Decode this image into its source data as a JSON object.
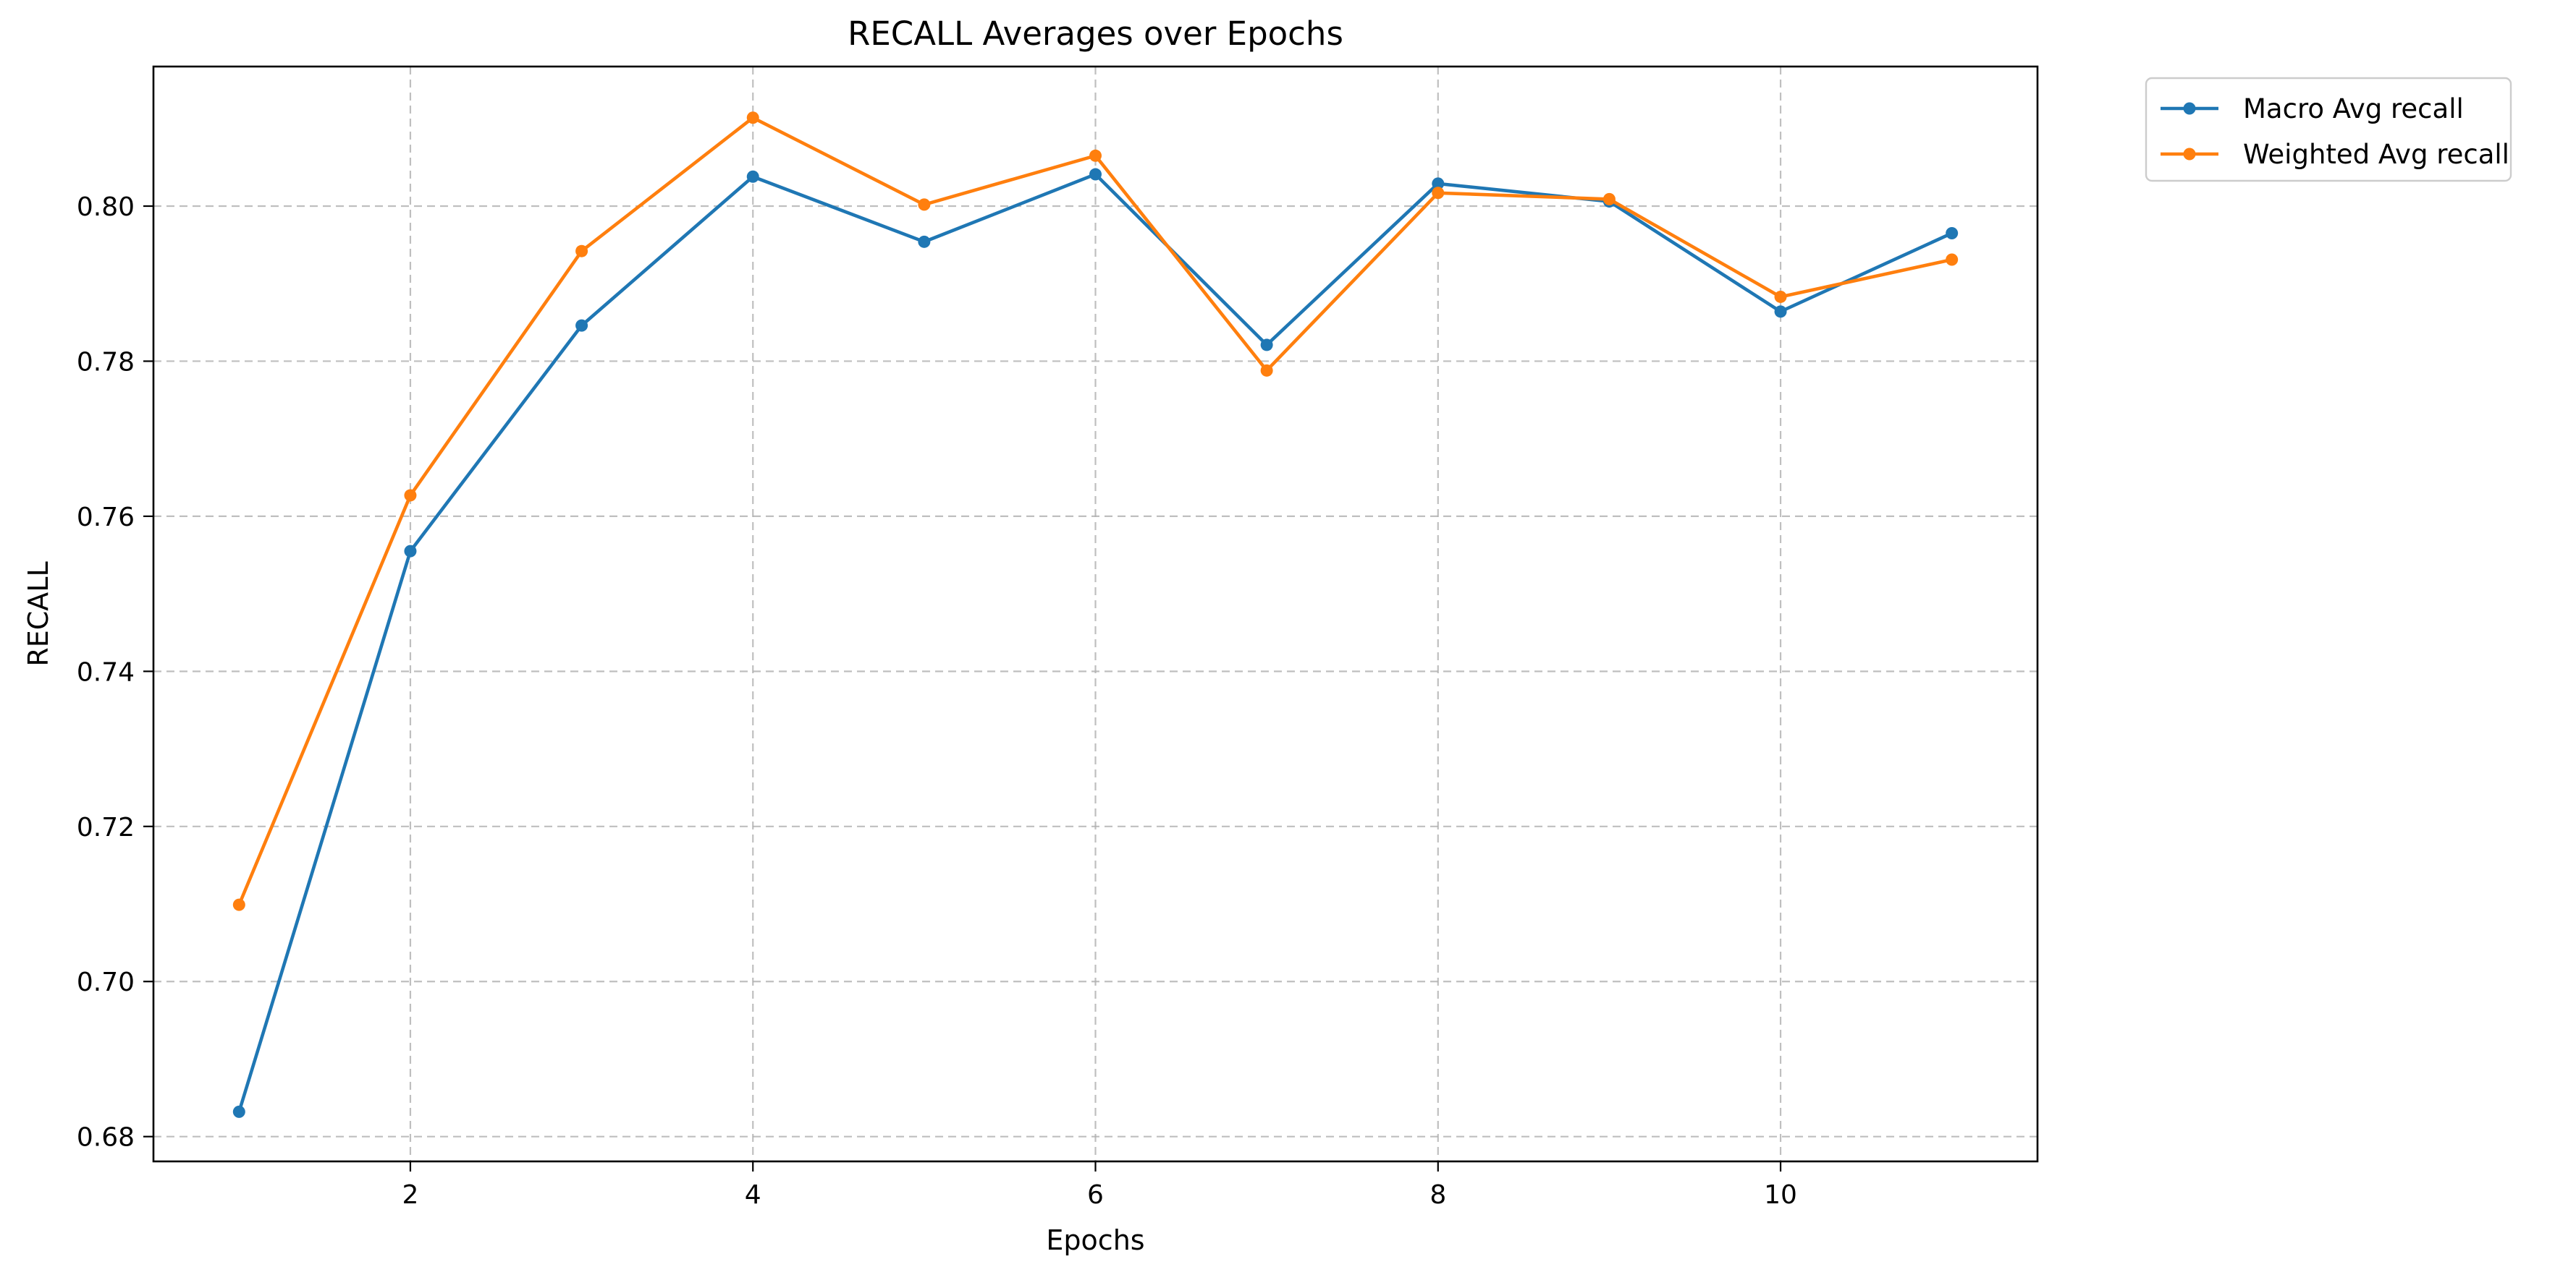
{
  "chart_data": {
    "type": "line",
    "title": "RECALL Averages over Epochs",
    "xlabel": "Epochs",
    "ylabel": "RECALL",
    "x": [
      1,
      2,
      3,
      4,
      5,
      6,
      7,
      8,
      9,
      10,
      11
    ],
    "xticks": [
      2,
      4,
      6,
      8,
      10
    ],
    "yticks": [
      "0.68",
      "0.70",
      "0.72",
      "0.74",
      "0.76",
      "0.78",
      "0.80"
    ],
    "xlim": [
      0.5,
      11.5
    ],
    "ylim": [
      0.6768,
      0.818
    ],
    "grid": true,
    "legend_position": "outside top-right",
    "series": [
      {
        "name": "Macro Avg recall",
        "color": "#1f77b4",
        "marker": "circle",
        "values": [
          0.6832,
          0.7555,
          0.7846,
          0.8038,
          0.7954,
          0.8041,
          0.7821,
          0.8029,
          0.8006,
          0.7864,
          0.7965
        ]
      },
      {
        "name": "Weighted Avg recall",
        "color": "#ff7f0e",
        "marker": "circle",
        "values": [
          0.7099,
          0.7627,
          0.7942,
          0.8114,
          0.8002,
          0.8065,
          0.7788,
          0.8017,
          0.8009,
          0.7883,
          0.7931
        ]
      }
    ]
  }
}
